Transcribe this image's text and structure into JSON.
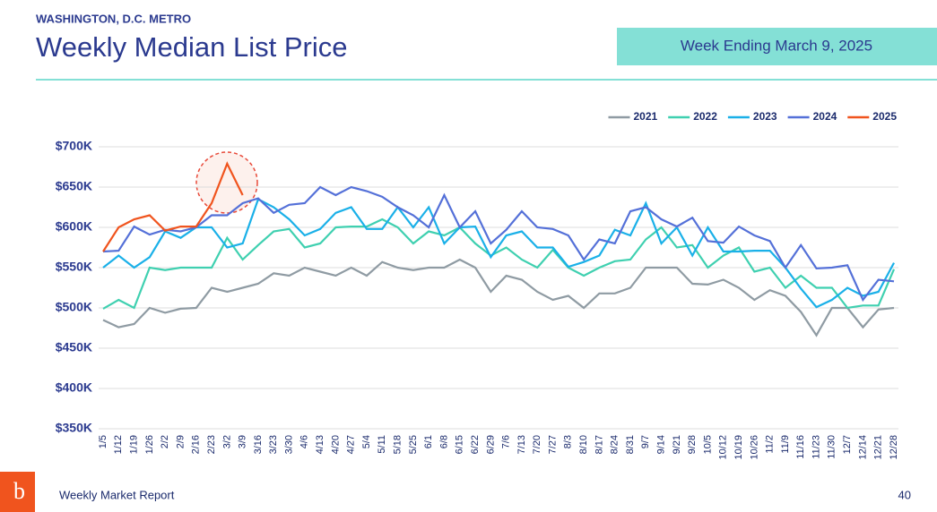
{
  "header": {
    "region": "WASHINGTON, D.C. METRO",
    "title": "Weekly Median List Price",
    "badge": "Week Ending March 9, 2025"
  },
  "chart_data": {
    "type": "line",
    "categories": [
      "1/5",
      "1/12",
      "1/19",
      "1/26",
      "2/2",
      "2/9",
      "2/16",
      "2/23",
      "3/2",
      "3/9",
      "3/16",
      "3/23",
      "3/30",
      "4/6",
      "4/13",
      "4/20",
      "4/27",
      "5/4",
      "5/11",
      "5/18",
      "5/25",
      "6/1",
      "6/8",
      "6/15",
      "6/22",
      "6/29",
      "7/6",
      "7/13",
      "7/20",
      "7/27",
      "8/3",
      "8/10",
      "8/17",
      "8/24",
      "8/31",
      "9/7",
      "9/14",
      "9/21",
      "9/28",
      "10/5",
      "10/12",
      "10/19",
      "10/26",
      "11/2",
      "11/9",
      "11/16",
      "11/23",
      "11/30",
      "12/7",
      "12/14",
      "12/21",
      "12/28"
    ],
    "series": [
      {
        "name": "2021",
        "color": "#8f9ba3",
        "values": [
          485000,
          476000,
          480000,
          500000,
          494000,
          499000,
          500000,
          525000,
          520000,
          525000,
          530000,
          543000,
          540000,
          550000,
          545000,
          540000,
          550000,
          540000,
          557000,
          550000,
          547000,
          550000,
          550000,
          560000,
          550000,
          520000,
          540000,
          535000,
          520000,
          510000,
          515000,
          500000,
          518000,
          518000,
          525000,
          550000,
          550000,
          550000,
          530000,
          529000,
          535000,
          525000,
          510000,
          522000,
          515000,
          495000,
          466000,
          500000,
          500000,
          476000,
          498000,
          500000
        ]
      },
      {
        "name": "2022",
        "color": "#3fd0b0",
        "values": [
          499000,
          510000,
          500000,
          550000,
          547000,
          550000,
          550000,
          550000,
          587000,
          560000,
          578000,
          595000,
          598000,
          575000,
          580000,
          600000,
          601000,
          601000,
          610000,
          600000,
          580000,
          595000,
          590000,
          600000,
          580000,
          565000,
          575000,
          560000,
          550000,
          572000,
          550000,
          540000,
          550000,
          558000,
          560000,
          585000,
          600000,
          575000,
          578000,
          550000,
          565000,
          575000,
          545000,
          550000,
          525000,
          540000,
          525000,
          525000,
          500000,
          503000,
          503000,
          548000
        ]
      },
      {
        "name": "2023",
        "color": "#1ab0e8",
        "values": [
          550000,
          565000,
          550000,
          563000,
          595000,
          587000,
          600000,
          600000,
          575000,
          580000,
          635000,
          625000,
          610000,
          590000,
          598000,
          618000,
          625000,
          598000,
          598000,
          625000,
          600000,
          625000,
          580000,
          600000,
          601000,
          563000,
          590000,
          595000,
          575000,
          575000,
          551000,
          557000,
          565000,
          597000,
          590000,
          630000,
          580000,
          600000,
          565000,
          600000,
          570000,
          570000,
          571000,
          571000,
          550000,
          524000,
          501000,
          510000,
          525000,
          515000,
          520000,
          556000
        ]
      },
      {
        "name": "2024",
        "color": "#5470d8",
        "values": [
          570000,
          571000,
          601000,
          591000,
          597000,
          595000,
          600000,
          615000,
          615000,
          630000,
          636000,
          618000,
          628000,
          630000,
          650000,
          640000,
          650000,
          645000,
          638000,
          625000,
          615000,
          600000,
          640000,
          600000,
          620000,
          580000,
          597000,
          620000,
          600000,
          598000,
          590000,
          560000,
          585000,
          580000,
          620000,
          625000,
          610000,
          601000,
          612000,
          583000,
          581000,
          601000,
          590000,
          583000,
          550000,
          578000,
          549000,
          550000,
          553000,
          510000,
          535000,
          533000
        ]
      },
      {
        "name": "2025",
        "color": "#f0541e",
        "values": [
          570000,
          600000,
          610000,
          615000,
          596000,
          601000,
          601000,
          630000,
          679000,
          640000,
          null,
          null,
          null,
          null,
          null,
          null,
          null,
          null,
          null,
          null,
          null,
          null,
          null,
          null,
          null,
          null,
          null,
          null,
          null,
          null,
          null,
          null,
          null,
          null,
          null,
          null,
          null,
          null,
          null,
          null,
          null,
          null,
          null,
          null,
          null,
          null,
          null,
          null,
          null,
          null,
          null,
          null
        ]
      }
    ],
    "ylim": [
      350000,
      700000
    ],
    "yticks": [
      {
        "value": 350000,
        "label": "$350K"
      },
      {
        "value": 400000,
        "label": "$400K"
      },
      {
        "value": 450000,
        "label": "$450K"
      },
      {
        "value": 500000,
        "label": "$500K"
      },
      {
        "value": 550000,
        "label": "$550K"
      },
      {
        "value": 600000,
        "label": "$600K"
      },
      {
        "value": 650000,
        "label": "$650K"
      },
      {
        "value": 700000,
        "label": "$700K"
      }
    ],
    "grid": true,
    "legend": "top-right"
  },
  "footer": {
    "logo": "b",
    "text": "Weekly Market Report",
    "page": "40"
  }
}
